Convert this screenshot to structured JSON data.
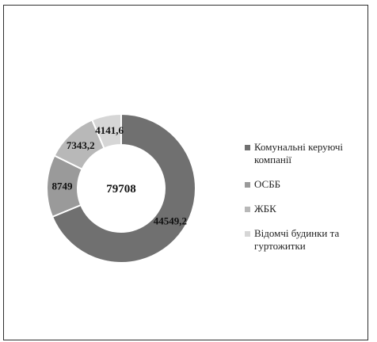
{
  "chart_data": {
    "type": "pie",
    "donut": true,
    "center_label": "79708",
    "title": "",
    "slices": [
      {
        "name": "Комунальні керуючі компанії",
        "value": 44549.2,
        "label": "44549,2",
        "color": "#707070"
      },
      {
        "name": "ОСББ",
        "value": 8749,
        "label": "8749",
        "color": "#9a9a9a"
      },
      {
        "name": "ЖБК",
        "value": 7343.2,
        "label": "7343,2",
        "color": "#b8b8b8"
      },
      {
        "name": "Відомчі будинки та гуртожитки",
        "value": 4141.6,
        "label": "4141,6",
        "color": "#d6d6d6"
      }
    ],
    "legend_position": "right"
  }
}
